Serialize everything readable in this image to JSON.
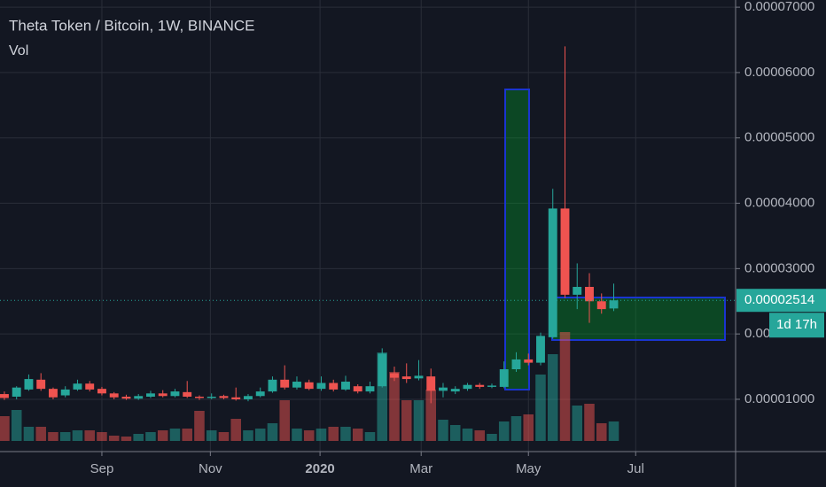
{
  "chart_data": {
    "type": "candlestick",
    "title": "Theta Token / Bitcoin, 1W, BINANCE",
    "volume_label": "Vol",
    "open": [
      1.08e-05,
      1.04e-05,
      1.15e-05,
      1.3e-05,
      1.16e-05,
      1.06e-05,
      1.15e-05,
      1.24e-05,
      1.16e-05,
      1.09e-05,
      1.04e-05,
      1.01e-05,
      1.04e-05,
      1.09e-05,
      1.05e-05,
      1.11e-05,
      1.04e-05,
      1.02e-05,
      1.05e-05,
      1.03e-05,
      1e-05,
      1.05e-05,
      1.12e-05,
      1.3e-05,
      1.18e-05,
      1.26e-05,
      1.16e-05,
      1.25e-05,
      1.15e-05,
      1.2e-05,
      1.12e-05,
      1.2e-05,
      1.4e-05,
      1.35e-05,
      1.32e-05,
      1.35e-05,
      1.13e-05,
      1.12e-05,
      1.16e-05,
      1.22e-05,
      1.19e-05,
      1.19e-05,
      1.46e-05,
      1.61e-05,
      1.56e-05,
      1.95e-05,
      3.92e-05,
      2.6e-05,
      2.72e-05,
      2.5e-05,
      2.39e-05
    ],
    "high": [
      1.12e-05,
      1.2e-05,
      1.38e-05,
      1.4e-05,
      1.18e-05,
      1.2e-05,
      1.3e-05,
      1.28e-05,
      1.19e-05,
      1.11e-05,
      1.07e-05,
      1.08e-05,
      1.13e-05,
      1.14e-05,
      1.16e-05,
      1.28e-05,
      1.06e-05,
      1.09e-05,
      1.07e-05,
      1.18e-05,
      1.08e-05,
      1.18e-05,
      1.35e-05,
      1.52e-05,
      1.35e-05,
      1.3e-05,
      1.35e-05,
      1.3e-05,
      1.36e-05,
      1.23e-05,
      1.27e-05,
      1.78e-05,
      1.5e-05,
      1.55e-05,
      1.6e-05,
      1.47e-05,
      1.25e-05,
      1.2e-05,
      1.25e-05,
      1.25e-05,
      1.24e-05,
      1.58e-05,
      1.72e-05,
      1.7e-05,
      2.02e-05,
      4.22e-05,
      6.4e-05,
      3.08e-05,
      2.93e-05,
      2.62e-05,
      2.77e-05
    ],
    "low": [
      9.9e-06,
      1e-05,
      1.13e-05,
      1.13e-05,
      1e-05,
      1.03e-05,
      1.13e-05,
      1.12e-05,
      1.06e-05,
      1e-05,
      9.9e-06,
      9.9e-06,
      1.02e-05,
      1.03e-05,
      1.03e-05,
      1.02e-05,
      9.9e-06,
      1e-05,
      1e-05,
      9.8e-06,
      9.7e-06,
      1.03e-05,
      1.1e-05,
      1.15e-05,
      1.15e-05,
      1.14e-05,
      1.13e-05,
      1.12e-05,
      1.13e-05,
      1.09e-05,
      1.09e-05,
      1.18e-05,
      1.28e-05,
      1.25e-05,
      1.29e-05,
      9.4e-06,
      1.03e-05,
      1.08e-05,
      1.13e-05,
      1.16e-05,
      1.17e-05,
      1.17e-05,
      1.42e-05,
      1.52e-05,
      1.52e-05,
      1.93e-05,
      2.55e-05,
      2.38e-05,
      2.17e-05,
      2.31e-05,
      2.35e-05
    ],
    "close": [
      1.02e-05,
      1.18e-05,
      1.31e-05,
      1.16e-05,
      1.03e-05,
      1.15e-05,
      1.24e-05,
      1.15e-05,
      1.09e-05,
      1.03e-05,
      1.01e-05,
      1.05e-05,
      1.09e-05,
      1.05e-05,
      1.12e-05,
      1.04e-05,
      1.02e-05,
      1.04e-05,
      1.02e-05,
      1e-05,
      1.05e-05,
      1.12e-05,
      1.3e-05,
      1.18e-05,
      1.27e-05,
      1.16e-05,
      1.25e-05,
      1.15e-05,
      1.27e-05,
      1.12e-05,
      1.2e-05,
      1.7e-05,
      1.33e-05,
      1.31e-05,
      1.36e-05,
      1.13e-05,
      1.18e-05,
      1.16e-05,
      1.22e-05,
      1.19e-05,
      1.21e-05,
      1.46e-05,
      1.61e-05,
      1.56e-05,
      1.97e-05,
      3.92e-05,
      2.6e-05,
      2.72e-05,
      2.5e-05,
      2.38e-05,
      2.514e-05
    ],
    "volume": [
      28,
      35,
      16,
      16,
      10,
      10,
      12,
      12,
      10,
      6,
      5,
      8,
      10,
      12,
      14,
      14,
      34,
      12,
      10,
      25,
      12,
      14,
      20,
      46,
      14,
      12,
      14,
      16,
      16,
      14,
      10,
      100,
      78,
      46,
      46,
      58,
      24,
      18,
      14,
      12,
      8,
      22,
      28,
      30,
      75,
      98,
      123,
      40,
      42,
      20,
      22
    ],
    "ylim": [
      2e-06,
      7.11e-05
    ],
    "yticks": [
      {
        "value": 1e-05,
        "label": "0.00001000"
      },
      {
        "value": 2e-05,
        "label": "0.00002000"
      },
      {
        "value": 3e-05,
        "label": "0.00003000"
      },
      {
        "value": 4e-05,
        "label": "0.00004000"
      },
      {
        "value": 5e-05,
        "label": "0.00005000"
      },
      {
        "value": 6e-05,
        "label": "0.00006000"
      },
      {
        "value": 7e-05,
        "label": "0.00007000"
      }
    ],
    "xlim": [
      -0.36,
      60.0
    ],
    "xticks": [
      {
        "value": 8.0,
        "label": "Sep"
      },
      {
        "value": 16.9,
        "label": "Nov"
      },
      {
        "value": 25.9,
        "label": "2020"
      },
      {
        "value": 34.2,
        "label": "Mar"
      },
      {
        "value": 43.0,
        "label": "May"
      },
      {
        "value": 51.8,
        "label": "Jul"
      }
    ],
    "last_price": {
      "value": 2.514e-05,
      "label": "0.00002514"
    },
    "countdown": "1d 17h",
    "up_color": "#26a69a",
    "down_color": "#ef5350",
    "grid": true
  }
}
